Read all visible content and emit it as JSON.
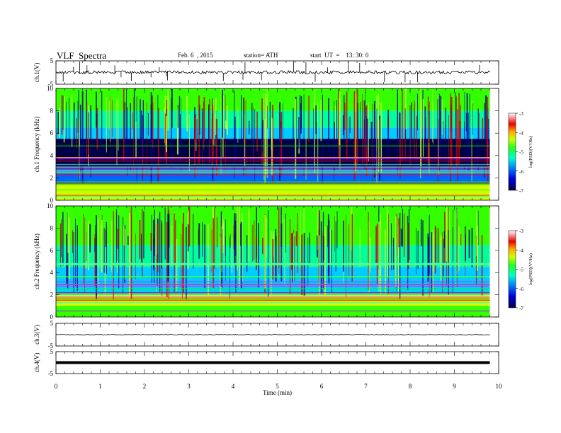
{
  "header": {
    "title": "VLF  Spectra",
    "date": "Feb. 6  , 2015",
    "station": "station= ATH",
    "start": "start  UT  =    13: 30: 0"
  },
  "colors": {
    "spectrogram_scale": [
      "#000044",
      "#0000cc",
      "#0066ff",
      "#00ccff",
      "#00ff99",
      "#33ff00",
      "#ccff00",
      "#ffcc00",
      "#ff4400",
      "#cc0000",
      "#ffffff"
    ],
    "trace": "#000000"
  },
  "chart_data": [
    {
      "type": "line",
      "name": "ch1-waveform",
      "ylabel": "ch.1(V)",
      "ylim": [
        -5,
        5
      ],
      "yticks": [
        "5",
        "-5"
      ],
      "x": [
        0,
        0.5,
        1,
        1.5,
        2,
        2.5,
        3,
        3.5,
        4,
        4.5,
        5,
        5.5,
        6,
        6.5,
        7,
        7.5,
        8,
        8.5,
        9,
        9.5,
        9.8
      ],
      "y": [
        0.3,
        0.0,
        0.2,
        0.1,
        0.0,
        0.2,
        0.1,
        0.0,
        0.1,
        0.0,
        0.2,
        0.1,
        0.0,
        0.1,
        0.2,
        0.0,
        0.1,
        0.0,
        0.1,
        0.0,
        0.1
      ]
    },
    {
      "type": "heatmap",
      "name": "ch1-spectrogram",
      "ylabel": "ch.1 Frequency  (kHz)",
      "ylim": [
        0,
        10
      ],
      "yticks": [
        "0",
        "2",
        "4",
        "6",
        "8",
        "10"
      ],
      "xlim": [
        0,
        10
      ],
      "colorbar": {
        "label": "log(PSD)(V²/Hz)",
        "ticks": [
          "-3",
          "-4",
          "-5",
          "-6",
          "-7"
        ],
        "range": [
          -7,
          -3
        ]
      },
      "bands": [
        {
          "from": 0,
          "to": 1.5,
          "level": -4.6
        },
        {
          "from": 1.5,
          "to": 3.0,
          "level": -5.9
        },
        {
          "from": 3.0,
          "to": 5.5,
          "level": -6.7
        },
        {
          "from": 5.5,
          "to": 6.5,
          "level": -5.8
        },
        {
          "from": 6.5,
          "to": 8.0,
          "level": -5.2
        },
        {
          "from": 8.0,
          "to": 10,
          "level": -5.0
        }
      ]
    },
    {
      "type": "heatmap",
      "name": "ch2-spectrogram",
      "ylabel": "ch.2 Frequency  (kHz)",
      "ylim": [
        0,
        10
      ],
      "yticks": [
        "0",
        "2",
        "4",
        "6",
        "8",
        "10"
      ],
      "xlim": [
        0,
        10
      ],
      "colorbar": {
        "label": "log(PSD)(V²/Hz)",
        "ticks": [
          "-3",
          "-4",
          "-5",
          "-6",
          "-7"
        ],
        "range": [
          -7,
          -3
        ]
      },
      "bands": [
        {
          "from": 0,
          "to": 1.0,
          "level": -4.8
        },
        {
          "from": 1.0,
          "to": 2.0,
          "level": -4.3
        },
        {
          "from": 2.0,
          "to": 4.5,
          "level": -5.8
        },
        {
          "from": 4.5,
          "to": 6.5,
          "level": -5.3
        },
        {
          "from": 6.5,
          "to": 10,
          "level": -4.7
        }
      ]
    },
    {
      "type": "line",
      "name": "ch3-waveform",
      "ylabel": "ch.3(V)",
      "ylim": [
        -5,
        5
      ],
      "yticks": [
        "5",
        "-5"
      ],
      "x": [
        0,
        9.8
      ],
      "y": [
        0,
        0
      ]
    },
    {
      "type": "line",
      "name": "ch4-waveform",
      "ylabel": "ch.4(V)",
      "ylim": [
        -5,
        5
      ],
      "yticks": [
        "5",
        "-5"
      ],
      "x": [
        0,
        9.8
      ],
      "y": [
        0,
        0
      ]
    }
  ],
  "x_axis": {
    "label": "Time  (min)",
    "ticks": [
      "0",
      "1",
      "2",
      "3",
      "4",
      "5",
      "6",
      "7",
      "8",
      "9",
      "10"
    ],
    "xlim": [
      0,
      10
    ],
    "data_end": 9.8
  }
}
